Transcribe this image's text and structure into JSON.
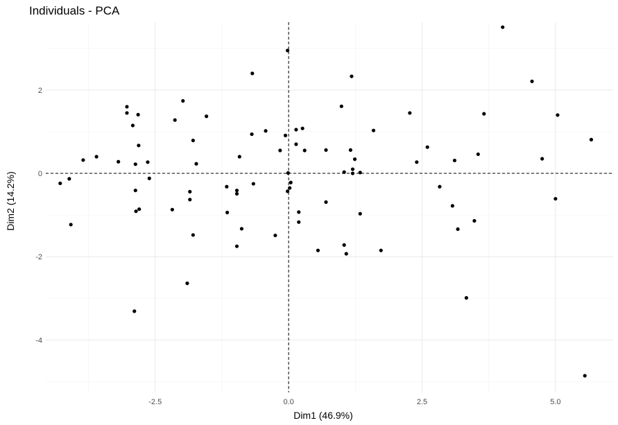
{
  "chart_data": {
    "type": "scatter",
    "title": "Individuals - PCA",
    "xlabel": "Dim1 (46.9%)",
    "ylabel": "Dim2 (14.2%)",
    "xlim": [
      -4.55,
      6.08
    ],
    "ylim": [
      -5.26,
      3.63
    ],
    "x_ticks": [
      -2.5,
      0.0,
      2.5,
      5.0
    ],
    "y_ticks": [
      -4,
      -2,
      0,
      2
    ],
    "x_tick_labels": [
      "-2.5",
      "0.0",
      "2.5",
      "5.0"
    ],
    "y_tick_labels": [
      "-4",
      "-2",
      "0",
      "2"
    ],
    "grid": true,
    "reference_lines": {
      "x": 0,
      "y": 0,
      "style": "dashed"
    },
    "point_color": "#000000",
    "points": [
      {
        "x": -4.28,
        "y": -0.24
      },
      {
        "x": -4.11,
        "y": -0.13
      },
      {
        "x": -4.08,
        "y": -1.23
      },
      {
        "x": -3.85,
        "y": 0.32
      },
      {
        "x": -3.6,
        "y": 0.4
      },
      {
        "x": -3.19,
        "y": 0.28
      },
      {
        "x": -3.03,
        "y": 1.6
      },
      {
        "x": -3.03,
        "y": 1.45
      },
      {
        "x": -2.92,
        "y": 1.15
      },
      {
        "x": -2.82,
        "y": 1.41
      },
      {
        "x": -2.81,
        "y": 0.67
      },
      {
        "x": -2.87,
        "y": 0.22
      },
      {
        "x": -2.87,
        "y": -0.41
      },
      {
        "x": -2.86,
        "y": -0.91
      },
      {
        "x": -2.8,
        "y": -0.86
      },
      {
        "x": -2.89,
        "y": -3.31
      },
      {
        "x": -2.64,
        "y": 0.27
      },
      {
        "x": -2.61,
        "y": -0.12
      },
      {
        "x": -2.18,
        "y": -0.87
      },
      {
        "x": -2.13,
        "y": 1.28
      },
      {
        "x": -1.98,
        "y": 1.74
      },
      {
        "x": -1.9,
        "y": -2.64
      },
      {
        "x": -1.85,
        "y": -0.44
      },
      {
        "x": -1.85,
        "y": -0.63
      },
      {
        "x": -1.79,
        "y": 0.79
      },
      {
        "x": -1.79,
        "y": -1.48
      },
      {
        "x": -1.73,
        "y": 0.23
      },
      {
        "x": -1.54,
        "y": 1.37
      },
      {
        "x": -1.16,
        "y": -0.32
      },
      {
        "x": -1.15,
        "y": -0.94
      },
      {
        "x": -0.97,
        "y": -0.41
      },
      {
        "x": -0.97,
        "y": -0.49
      },
      {
        "x": -0.97,
        "y": -1.75
      },
      {
        "x": -0.92,
        "y": 0.4
      },
      {
        "x": -0.88,
        "y": -1.33
      },
      {
        "x": -0.68,
        "y": 2.4
      },
      {
        "x": -0.69,
        "y": 0.94
      },
      {
        "x": -0.66,
        "y": -0.25
      },
      {
        "x": -0.43,
        "y": 1.02
      },
      {
        "x": -0.25,
        "y": -1.49
      },
      {
        "x": -0.16,
        "y": 0.55
      },
      {
        "x": -0.06,
        "y": 0.91
      },
      {
        "x": -0.02,
        "y": 2.95
      },
      {
        "x": -0.01,
        "y": 0.01
      },
      {
        "x": 0.04,
        "y": -0.22
      },
      {
        "x": 0.02,
        "y": -0.35
      },
      {
        "x": -0.02,
        "y": -0.43
      },
      {
        "x": 0.14,
        "y": 1.05
      },
      {
        "x": 0.14,
        "y": 0.7
      },
      {
        "x": 0.19,
        "y": -0.93
      },
      {
        "x": 0.19,
        "y": -1.17
      },
      {
        "x": 0.26,
        "y": 1.08
      },
      {
        "x": 0.3,
        "y": 0.55
      },
      {
        "x": 0.55,
        "y": -1.85
      },
      {
        "x": 0.7,
        "y": 0.56
      },
      {
        "x": 0.7,
        "y": -0.69
      },
      {
        "x": 0.99,
        "y": 1.61
      },
      {
        "x": 1.04,
        "y": 0.03
      },
      {
        "x": 1.04,
        "y": -1.72
      },
      {
        "x": 1.08,
        "y": -1.93
      },
      {
        "x": 1.16,
        "y": 0.56
      },
      {
        "x": 1.18,
        "y": 2.33
      },
      {
        "x": 1.2,
        "y": 0.1
      },
      {
        "x": 1.2,
        "y": 0.0
      },
      {
        "x": 1.24,
        "y": 0.34
      },
      {
        "x": 1.34,
        "y": 0.02
      },
      {
        "x": 1.34,
        "y": -0.97
      },
      {
        "x": 1.59,
        "y": 1.03
      },
      {
        "x": 1.73,
        "y": -1.85
      },
      {
        "x": 2.27,
        "y": 1.45
      },
      {
        "x": 2.4,
        "y": 0.27
      },
      {
        "x": 2.6,
        "y": 0.63
      },
      {
        "x": 2.83,
        "y": -0.32
      },
      {
        "x": 3.07,
        "y": -0.78
      },
      {
        "x": 3.11,
        "y": 0.31
      },
      {
        "x": 3.17,
        "y": -1.34
      },
      {
        "x": 3.33,
        "y": -2.99
      },
      {
        "x": 3.48,
        "y": -1.14
      },
      {
        "x": 3.55,
        "y": 0.46
      },
      {
        "x": 3.66,
        "y": 1.43
      },
      {
        "x": 4.01,
        "y": 3.51
      },
      {
        "x": 4.56,
        "y": 2.21
      },
      {
        "x": 4.75,
        "y": 0.35
      },
      {
        "x": 5.0,
        "y": -0.61
      },
      {
        "x": 5.04,
        "y": 1.4
      },
      {
        "x": 5.55,
        "y": -4.86
      },
      {
        "x": 5.67,
        "y": 0.81
      }
    ]
  }
}
